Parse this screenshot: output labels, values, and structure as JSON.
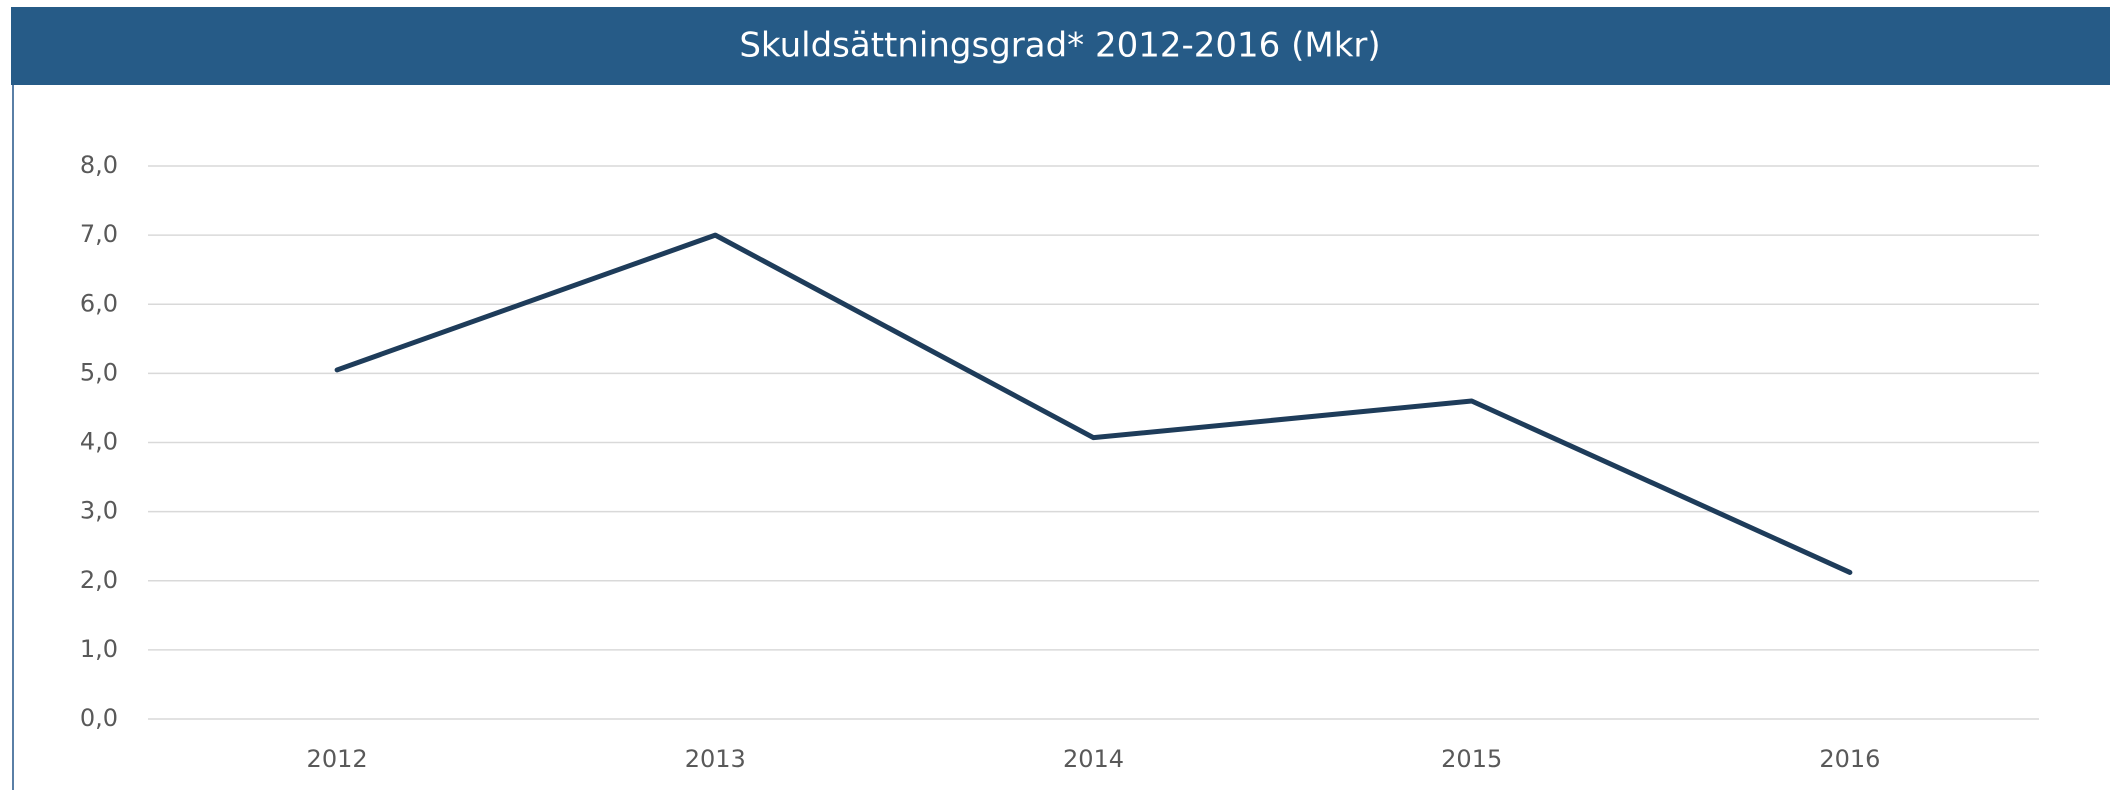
{
  "chart_data": {
    "type": "line",
    "title": "Skuldsättningsgrad* 2012-2016 (Mkr)",
    "categories": [
      "2012",
      "2013",
      "2014",
      "2015",
      "2016"
    ],
    "series": [
      {
        "color": "#1e3c5a",
        "values": [
          5.05,
          7.0,
          4.07,
          4.6,
          2.12
        ]
      }
    ],
    "ylim": [
      0,
      8
    ],
    "yticks": [
      {
        "value": 0,
        "label": "0,0"
      },
      {
        "value": 1,
        "label": "1,0"
      },
      {
        "value": 2,
        "label": "2,0"
      },
      {
        "value": 3,
        "label": "3,0"
      },
      {
        "value": 4,
        "label": "4,0"
      },
      {
        "value": 5,
        "label": "5,0"
      },
      {
        "value": 6,
        "label": "6,0"
      },
      {
        "value": 7,
        "label": "7,0"
      },
      {
        "value": 8,
        "label": "8,0"
      }
    ],
    "grid": true
  }
}
